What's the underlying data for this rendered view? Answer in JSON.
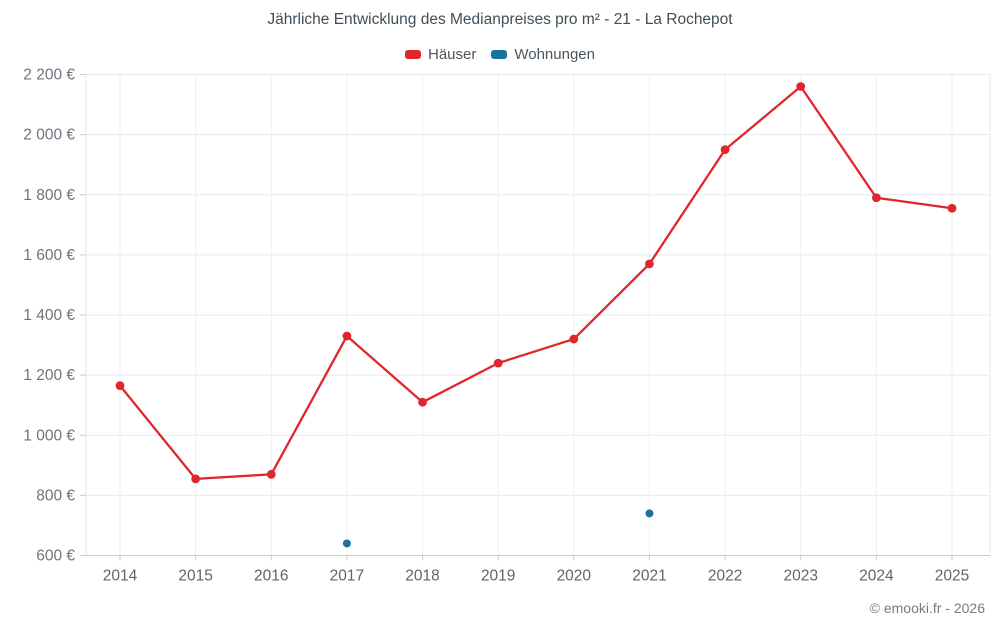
{
  "chart_data": {
    "type": "line",
    "title": "Jährliche Entwicklung des Medianpreises pro m² - 21 - La Rochepot",
    "categories": [
      "2014",
      "2015",
      "2016",
      "2017",
      "2018",
      "2019",
      "2020",
      "2021",
      "2022",
      "2023",
      "2024",
      "2025"
    ],
    "series": [
      {
        "name": "Häuser",
        "color": "#e0262d",
        "draw_line": true,
        "values": [
          1165,
          855,
          870,
          1330,
          1110,
          1240,
          1320,
          1570,
          1950,
          2160,
          1790,
          1755
        ]
      },
      {
        "name": "Wohnungen",
        "color": "#1a71a2",
        "draw_line": false,
        "values": [
          null,
          null,
          null,
          640,
          null,
          null,
          null,
          740,
          null,
          null,
          null,
          null
        ]
      }
    ],
    "ylim": [
      600,
      2200
    ],
    "y_ticks": [
      600,
      800,
      1000,
      1200,
      1400,
      1600,
      1800,
      2000,
      2200
    ],
    "y_tick_labels": [
      "600 €",
      "800 €",
      "1 000 €",
      "1 200 €",
      "1 400 €",
      "1 600 €",
      "1 800 €",
      "2 000 €",
      "2 200 €"
    ],
    "xlabel": "",
    "ylabel": "",
    "grid": true,
    "legend_position": "top"
  },
  "footer": {
    "copyright": "© emooki.fr - 2026"
  }
}
